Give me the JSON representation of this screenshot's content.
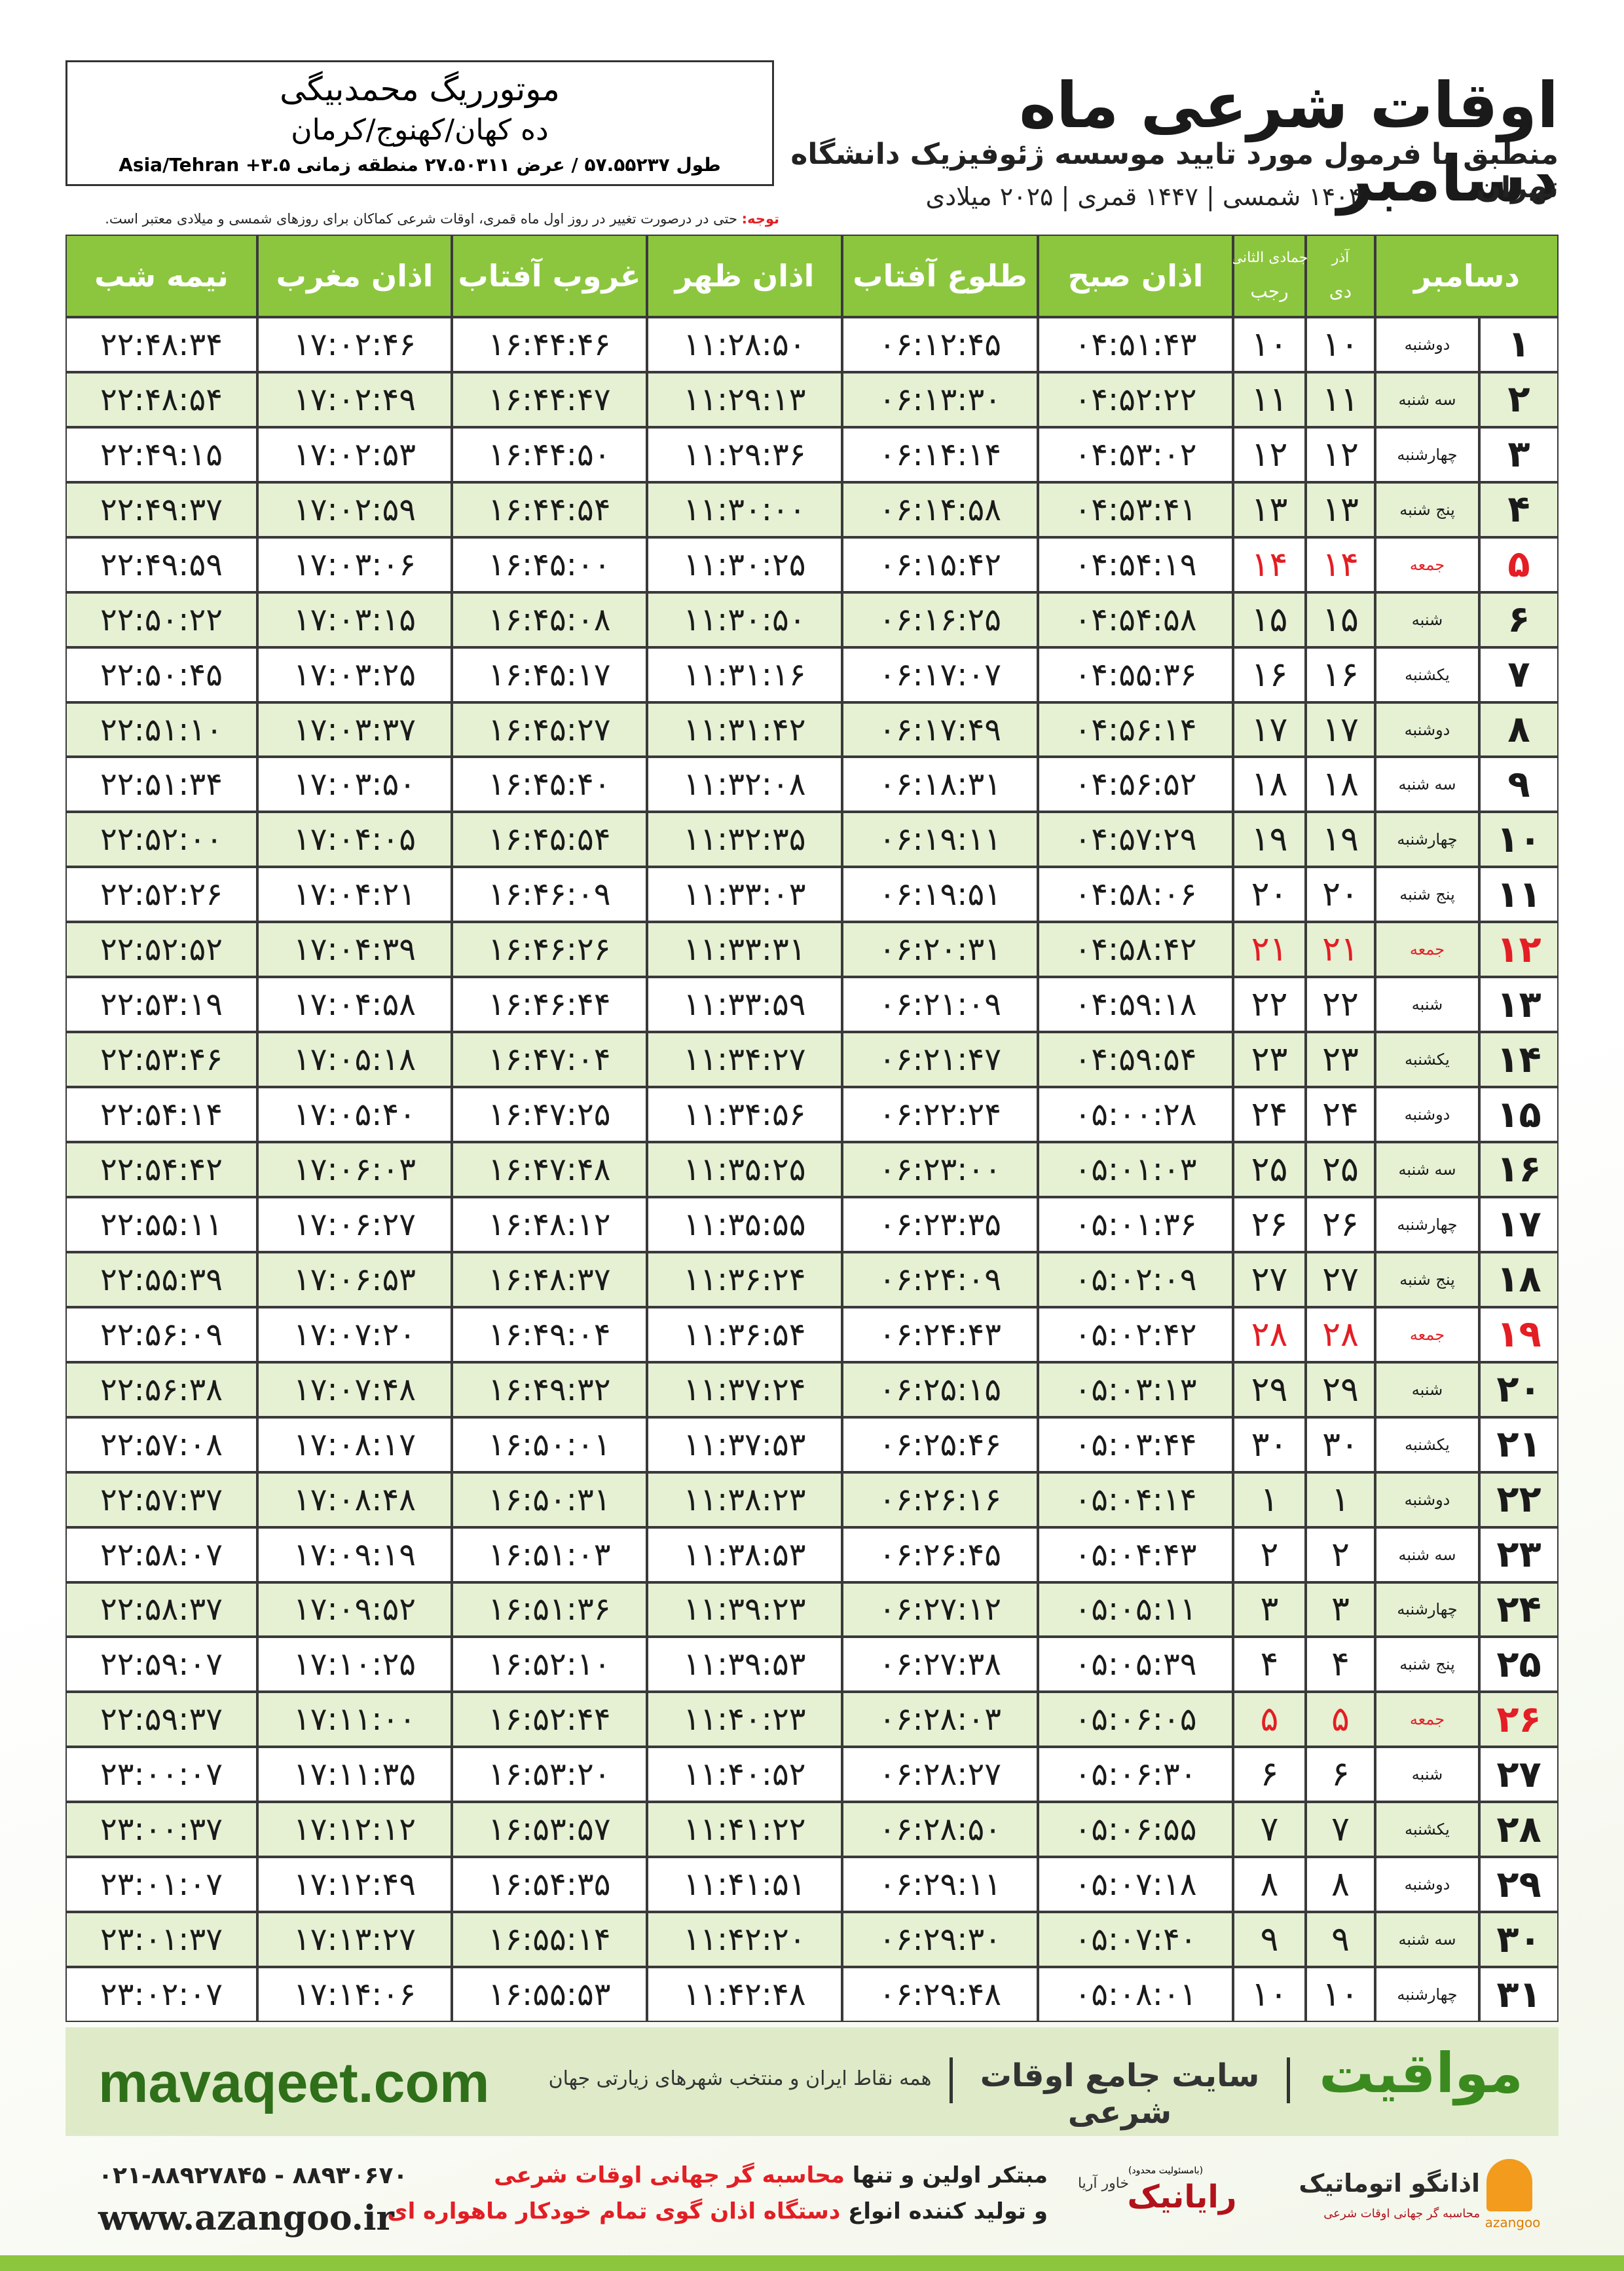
{
  "header": {
    "title": "اوقات شرعی ماه دسامبر",
    "subtitle": "منطبق با فرمول مورد تایید موسسه ژئوفیزیک دانشگاه تهران",
    "dates": "۱۴۰۴ شمسی | ۱۴۴۷ قمری | ۲۰۲۵ میلادی"
  },
  "location": {
    "name": "موتورریگ محمدبیگی",
    "place": "ده کهان/کهنوج/کرمان",
    "coords": "طول ۵۷.۵۵۲۳۷ / عرض ۲۷.۵۰۳۱۱ منطقه زمانی ۳.۵+ Asia/Tehran"
  },
  "note": {
    "label": "توجه:",
    "text": "حتی در درصورت تغییر در روز اول ماه قمری، اوقات شرعی کماکان برای روزهای شمسی و میلادی معتبر است."
  },
  "table": {
    "columns": [
      {
        "label": "دسامبر"
      },
      {
        "top": "آذر",
        "label": "دی"
      },
      {
        "top": "جمادی الثانی",
        "label": "رجب"
      },
      {
        "label": "اذان صبح"
      },
      {
        "label": "طلوع آفتاب"
      },
      {
        "label": "اذان ظهر"
      },
      {
        "label": "غروب آفتاب"
      },
      {
        "label": "اذان مغرب"
      },
      {
        "label": "نیمه شب"
      }
    ],
    "rows": [
      {
        "day": "۱",
        "weekday": "دوشنبه",
        "dey": "۱۰",
        "rajab": "۱۰",
        "times": [
          "۰۴:۵۱:۴۳",
          "۰۶:۱۲:۴۵",
          "۱۱:۲۸:۵۰",
          "۱۶:۴۴:۴۶",
          "۱۷:۰۲:۴۶",
          "۲۲:۴۸:۳۴"
        ]
      },
      {
        "day": "۲",
        "weekday": "سه شنبه",
        "dey": "۱۱",
        "rajab": "۱۱",
        "times": [
          "۰۴:۵۲:۲۲",
          "۰۶:۱۳:۳۰",
          "۱۱:۲۹:۱۳",
          "۱۶:۴۴:۴۷",
          "۱۷:۰۲:۴۹",
          "۲۲:۴۸:۵۴"
        ]
      },
      {
        "day": "۳",
        "weekday": "چهارشنبه",
        "dey": "۱۲",
        "rajab": "۱۲",
        "times": [
          "۰۴:۵۳:۰۲",
          "۰۶:۱۴:۱۴",
          "۱۱:۲۹:۳۶",
          "۱۶:۴۴:۵۰",
          "۱۷:۰۲:۵۳",
          "۲۲:۴۹:۱۵"
        ]
      },
      {
        "day": "۴",
        "weekday": "پنج شنبه",
        "dey": "۱۳",
        "rajab": "۱۳",
        "times": [
          "۰۴:۵۳:۴۱",
          "۰۶:۱۴:۵۸",
          "۱۱:۳۰:۰۰",
          "۱۶:۴۴:۵۴",
          "۱۷:۰۲:۵۹",
          "۲۲:۴۹:۳۷"
        ]
      },
      {
        "day": "۵",
        "weekday": "جمعه",
        "dey": "۱۴",
        "rajab": "۱۴",
        "color": "#e31e24",
        "times": [
          "۰۴:۵۴:۱۹",
          "۰۶:۱۵:۴۲",
          "۱۱:۳۰:۲۵",
          "۱۶:۴۵:۰۰",
          "۱۷:۰۳:۰۶",
          "۲۲:۴۹:۵۹"
        ]
      },
      {
        "day": "۶",
        "weekday": "شنبه",
        "dey": "۱۵",
        "rajab": "۱۵",
        "times": [
          "۰۴:۵۴:۵۸",
          "۰۶:۱۶:۲۵",
          "۱۱:۳۰:۵۰",
          "۱۶:۴۵:۰۸",
          "۱۷:۰۳:۱۵",
          "۲۲:۵۰:۲۲"
        ]
      },
      {
        "day": "۷",
        "weekday": "یکشنبه",
        "dey": "۱۶",
        "rajab": "۱۶",
        "times": [
          "۰۴:۵۵:۳۶",
          "۰۶:۱۷:۰۷",
          "۱۱:۳۱:۱۶",
          "۱۶:۴۵:۱۷",
          "۱۷:۰۳:۲۵",
          "۲۲:۵۰:۴۵"
        ]
      },
      {
        "day": "۸",
        "weekday": "دوشنبه",
        "dey": "۱۷",
        "rajab": "۱۷",
        "times": [
          "۰۴:۵۶:۱۴",
          "۰۶:۱۷:۴۹",
          "۱۱:۳۱:۴۲",
          "۱۶:۴۵:۲۷",
          "۱۷:۰۳:۳۷",
          "۲۲:۵۱:۱۰"
        ]
      },
      {
        "day": "۹",
        "weekday": "سه شنبه",
        "dey": "۱۸",
        "rajab": "۱۸",
        "times": [
          "۰۴:۵۶:۵۲",
          "۰۶:۱۸:۳۱",
          "۱۱:۳۲:۰۸",
          "۱۶:۴۵:۴۰",
          "۱۷:۰۳:۵۰",
          "۲۲:۵۱:۳۴"
        ]
      },
      {
        "day": "۱۰",
        "weekday": "چهارشنبه",
        "dey": "۱۹",
        "rajab": "۱۹",
        "times": [
          "۰۴:۵۷:۲۹",
          "۰۶:۱۹:۱۱",
          "۱۱:۳۲:۳۵",
          "۱۶:۴۵:۵۴",
          "۱۷:۰۴:۰۵",
          "۲۲:۵۲:۰۰"
        ]
      },
      {
        "day": "۱۱",
        "weekday": "پنج شنبه",
        "dey": "۲۰",
        "rajab": "۲۰",
        "times": [
          "۰۴:۵۸:۰۶",
          "۰۶:۱۹:۵۱",
          "۱۱:۳۳:۰۳",
          "۱۶:۴۶:۰۹",
          "۱۷:۰۴:۲۱",
          "۲۲:۵۲:۲۶"
        ]
      },
      {
        "day": "۱۲",
        "weekday": "جمعه",
        "dey": "۲۱",
        "rajab": "۲۱",
        "color": "#e31e24",
        "times": [
          "۰۴:۵۸:۴۲",
          "۰۶:۲۰:۳۱",
          "۱۱:۳۳:۳۱",
          "۱۶:۴۶:۲۶",
          "۱۷:۰۴:۳۹",
          "۲۲:۵۲:۵۲"
        ]
      },
      {
        "day": "۱۳",
        "weekday": "شنبه",
        "dey": "۲۲",
        "rajab": "۲۲",
        "times": [
          "۰۴:۵۹:۱۸",
          "۰۶:۲۱:۰۹",
          "۱۱:۳۳:۵۹",
          "۱۶:۴۶:۴۴",
          "۱۷:۰۴:۵۸",
          "۲۲:۵۳:۱۹"
        ]
      },
      {
        "day": "۱۴",
        "weekday": "یکشنبه",
        "dey": "۲۳",
        "rajab": "۲۳",
        "times": [
          "۰۴:۵۹:۵۴",
          "۰۶:۲۱:۴۷",
          "۱۱:۳۴:۲۷",
          "۱۶:۴۷:۰۴",
          "۱۷:۰۵:۱۸",
          "۲۲:۵۳:۴۶"
        ]
      },
      {
        "day": "۱۵",
        "weekday": "دوشنبه",
        "dey": "۲۴",
        "rajab": "۲۴",
        "times": [
          "۰۵:۰۰:۲۸",
          "۰۶:۲۲:۲۴",
          "۱۱:۳۴:۵۶",
          "۱۶:۴۷:۲۵",
          "۱۷:۰۵:۴۰",
          "۲۲:۵۴:۱۴"
        ]
      },
      {
        "day": "۱۶",
        "weekday": "سه شنبه",
        "dey": "۲۵",
        "rajab": "۲۵",
        "times": [
          "۰۵:۰۱:۰۳",
          "۰۶:۲۳:۰۰",
          "۱۱:۳۵:۲۵",
          "۱۶:۴۷:۴۸",
          "۱۷:۰۶:۰۳",
          "۲۲:۵۴:۴۲"
        ]
      },
      {
        "day": "۱۷",
        "weekday": "چهارشنبه",
        "dey": "۲۶",
        "rajab": "۲۶",
        "times": [
          "۰۵:۰۱:۳۶",
          "۰۶:۲۳:۳۵",
          "۱۱:۳۵:۵۵",
          "۱۶:۴۸:۱۲",
          "۱۷:۰۶:۲۷",
          "۲۲:۵۵:۱۱"
        ]
      },
      {
        "day": "۱۸",
        "weekday": "پنج شنبه",
        "dey": "۲۷",
        "rajab": "۲۷",
        "times": [
          "۰۵:۰۲:۰۹",
          "۰۶:۲۴:۰۹",
          "۱۱:۳۶:۲۴",
          "۱۶:۴۸:۳۷",
          "۱۷:۰۶:۵۳",
          "۲۲:۵۵:۳۹"
        ]
      },
      {
        "day": "۱۹",
        "weekday": "جمعه",
        "dey": "۲۸",
        "rajab": "۲۸",
        "color": "#e31e24",
        "times": [
          "۰۵:۰۲:۴۲",
          "۰۶:۲۴:۴۳",
          "۱۱:۳۶:۵۴",
          "۱۶:۴۹:۰۴",
          "۱۷:۰۷:۲۰",
          "۲۲:۵۶:۰۹"
        ]
      },
      {
        "day": "۲۰",
        "weekday": "شنبه",
        "dey": "۲۹",
        "rajab": "۲۹",
        "times": [
          "۰۵:۰۳:۱۳",
          "۰۶:۲۵:۱۵",
          "۱۱:۳۷:۲۴",
          "۱۶:۴۹:۳۲",
          "۱۷:۰۷:۴۸",
          "۲۲:۵۶:۳۸"
        ]
      },
      {
        "day": "۲۱",
        "weekday": "یکشنبه",
        "dey": "۳۰",
        "rajab": "۳۰",
        "times": [
          "۰۵:۰۳:۴۴",
          "۰۶:۲۵:۴۶",
          "۱۱:۳۷:۵۳",
          "۱۶:۵۰:۰۱",
          "۱۷:۰۸:۱۷",
          "۲۲:۵۷:۰۸"
        ]
      },
      {
        "day": "۲۲",
        "weekday": "دوشنبه",
        "dey": "۱",
        "rajab": "۱",
        "times": [
          "۰۵:۰۴:۱۴",
          "۰۶:۲۶:۱۶",
          "۱۱:۳۸:۲۳",
          "۱۶:۵۰:۳۱",
          "۱۷:۰۸:۴۸",
          "۲۲:۵۷:۳۷"
        ]
      },
      {
        "day": "۲۳",
        "weekday": "سه شنبه",
        "dey": "۲",
        "rajab": "۲",
        "times": [
          "۰۵:۰۴:۴۳",
          "۰۶:۲۶:۴۵",
          "۱۱:۳۸:۵۳",
          "۱۶:۵۱:۰۳",
          "۱۷:۰۹:۱۹",
          "۲۲:۵۸:۰۷"
        ]
      },
      {
        "day": "۲۴",
        "weekday": "چهارشنبه",
        "dey": "۳",
        "rajab": "۳",
        "times": [
          "۰۵:۰۵:۱۱",
          "۰۶:۲۷:۱۲",
          "۱۱:۳۹:۲۳",
          "۱۶:۵۱:۳۶",
          "۱۷:۰۹:۵۲",
          "۲۲:۵۸:۳۷"
        ]
      },
      {
        "day": "۲۵",
        "weekday": "پنج شنبه",
        "dey": "۴",
        "rajab": "۴",
        "times": [
          "۰۵:۰۵:۳۹",
          "۰۶:۲۷:۳۸",
          "۱۱:۳۹:۵۳",
          "۱۶:۵۲:۱۰",
          "۱۷:۱۰:۲۵",
          "۲۲:۵۹:۰۷"
        ]
      },
      {
        "day": "۲۶",
        "weekday": "جمعه",
        "dey": "۵",
        "rajab": "۵",
        "color": "#e31e24",
        "times": [
          "۰۵:۰۶:۰۵",
          "۰۶:۲۸:۰۳",
          "۱۱:۴۰:۲۳",
          "۱۶:۵۲:۴۴",
          "۱۷:۱۱:۰۰",
          "۲۲:۵۹:۳۷"
        ]
      },
      {
        "day": "۲۷",
        "weekday": "شنبه",
        "dey": "۶",
        "rajab": "۶",
        "times": [
          "۰۵:۰۶:۳۰",
          "۰۶:۲۸:۲۷",
          "۱۱:۴۰:۵۲",
          "۱۶:۵۳:۲۰",
          "۱۷:۱۱:۳۵",
          "۲۳:۰۰:۰۷"
        ]
      },
      {
        "day": "۲۸",
        "weekday": "یکشنبه",
        "dey": "۷",
        "rajab": "۷",
        "times": [
          "۰۵:۰۶:۵۵",
          "۰۶:۲۸:۵۰",
          "۱۱:۴۱:۲۲",
          "۱۶:۵۳:۵۷",
          "۱۷:۱۲:۱۲",
          "۲۳:۰۰:۳۷"
        ]
      },
      {
        "day": "۲۹",
        "weekday": "دوشنبه",
        "dey": "۸",
        "rajab": "۸",
        "times": [
          "۰۵:۰۷:۱۸",
          "۰۶:۲۹:۱۱",
          "۱۱:۴۱:۵۱",
          "۱۶:۵۴:۳۵",
          "۱۷:۱۲:۴۹",
          "۲۳:۰۱:۰۷"
        ]
      },
      {
        "day": "۳۰",
        "weekday": "سه شنبه",
        "dey": "۹",
        "rajab": "۹",
        "times": [
          "۰۵:۰۷:۴۰",
          "۰۶:۲۹:۳۰",
          "۱۱:۴۲:۲۰",
          "۱۶:۵۵:۱۴",
          "۱۷:۱۳:۲۷",
          "۲۳:۰۱:۳۷"
        ]
      },
      {
        "day": "۳۱",
        "weekday": "چهارشنبه",
        "dey": "۱۰",
        "rajab": "۱۰",
        "times": [
          "۰۵:۰۸:۰۱",
          "۰۶:۲۹:۴۸",
          "۱۱:۴۲:۴۸",
          "۱۶:۵۵:۵۳",
          "۱۷:۱۴:۰۶",
          "۲۳:۰۲:۰۷"
        ]
      }
    ]
  },
  "banner": {
    "brand": "مواقیت",
    "slogan": "سایت جامع اوقات شرعی",
    "tagline": "همه نقاط ایران و منتخب شهرهای زیارتی جهان",
    "site": "mavaqeet.com"
  },
  "footer": {
    "line1": {
      "text": "مبتکر اولین و تنها",
      "highlight": "محاسبه گر جهانی اوقات شرعی"
    },
    "line2": {
      "text": "و تولید کننده انواع",
      "highlight": "دستگاه اذان گوی تمام خودکار ماهواره ای"
    },
    "phone": "۰۲۱-۸۸۹۲۷۸۴۵ - ۸۸۹۳۰۶۷۰",
    "web": "www.azangoo.ir",
    "company": "رایانیک",
    "company_note": "(بامسئولیت محدود)",
    "company2": "خاور آریا",
    "logo": "اذانگو اتوماتیک",
    "logo_sub": "محاسبه گر جهانی اوقات شرعی",
    "logo_latin": "azangoo"
  }
}
